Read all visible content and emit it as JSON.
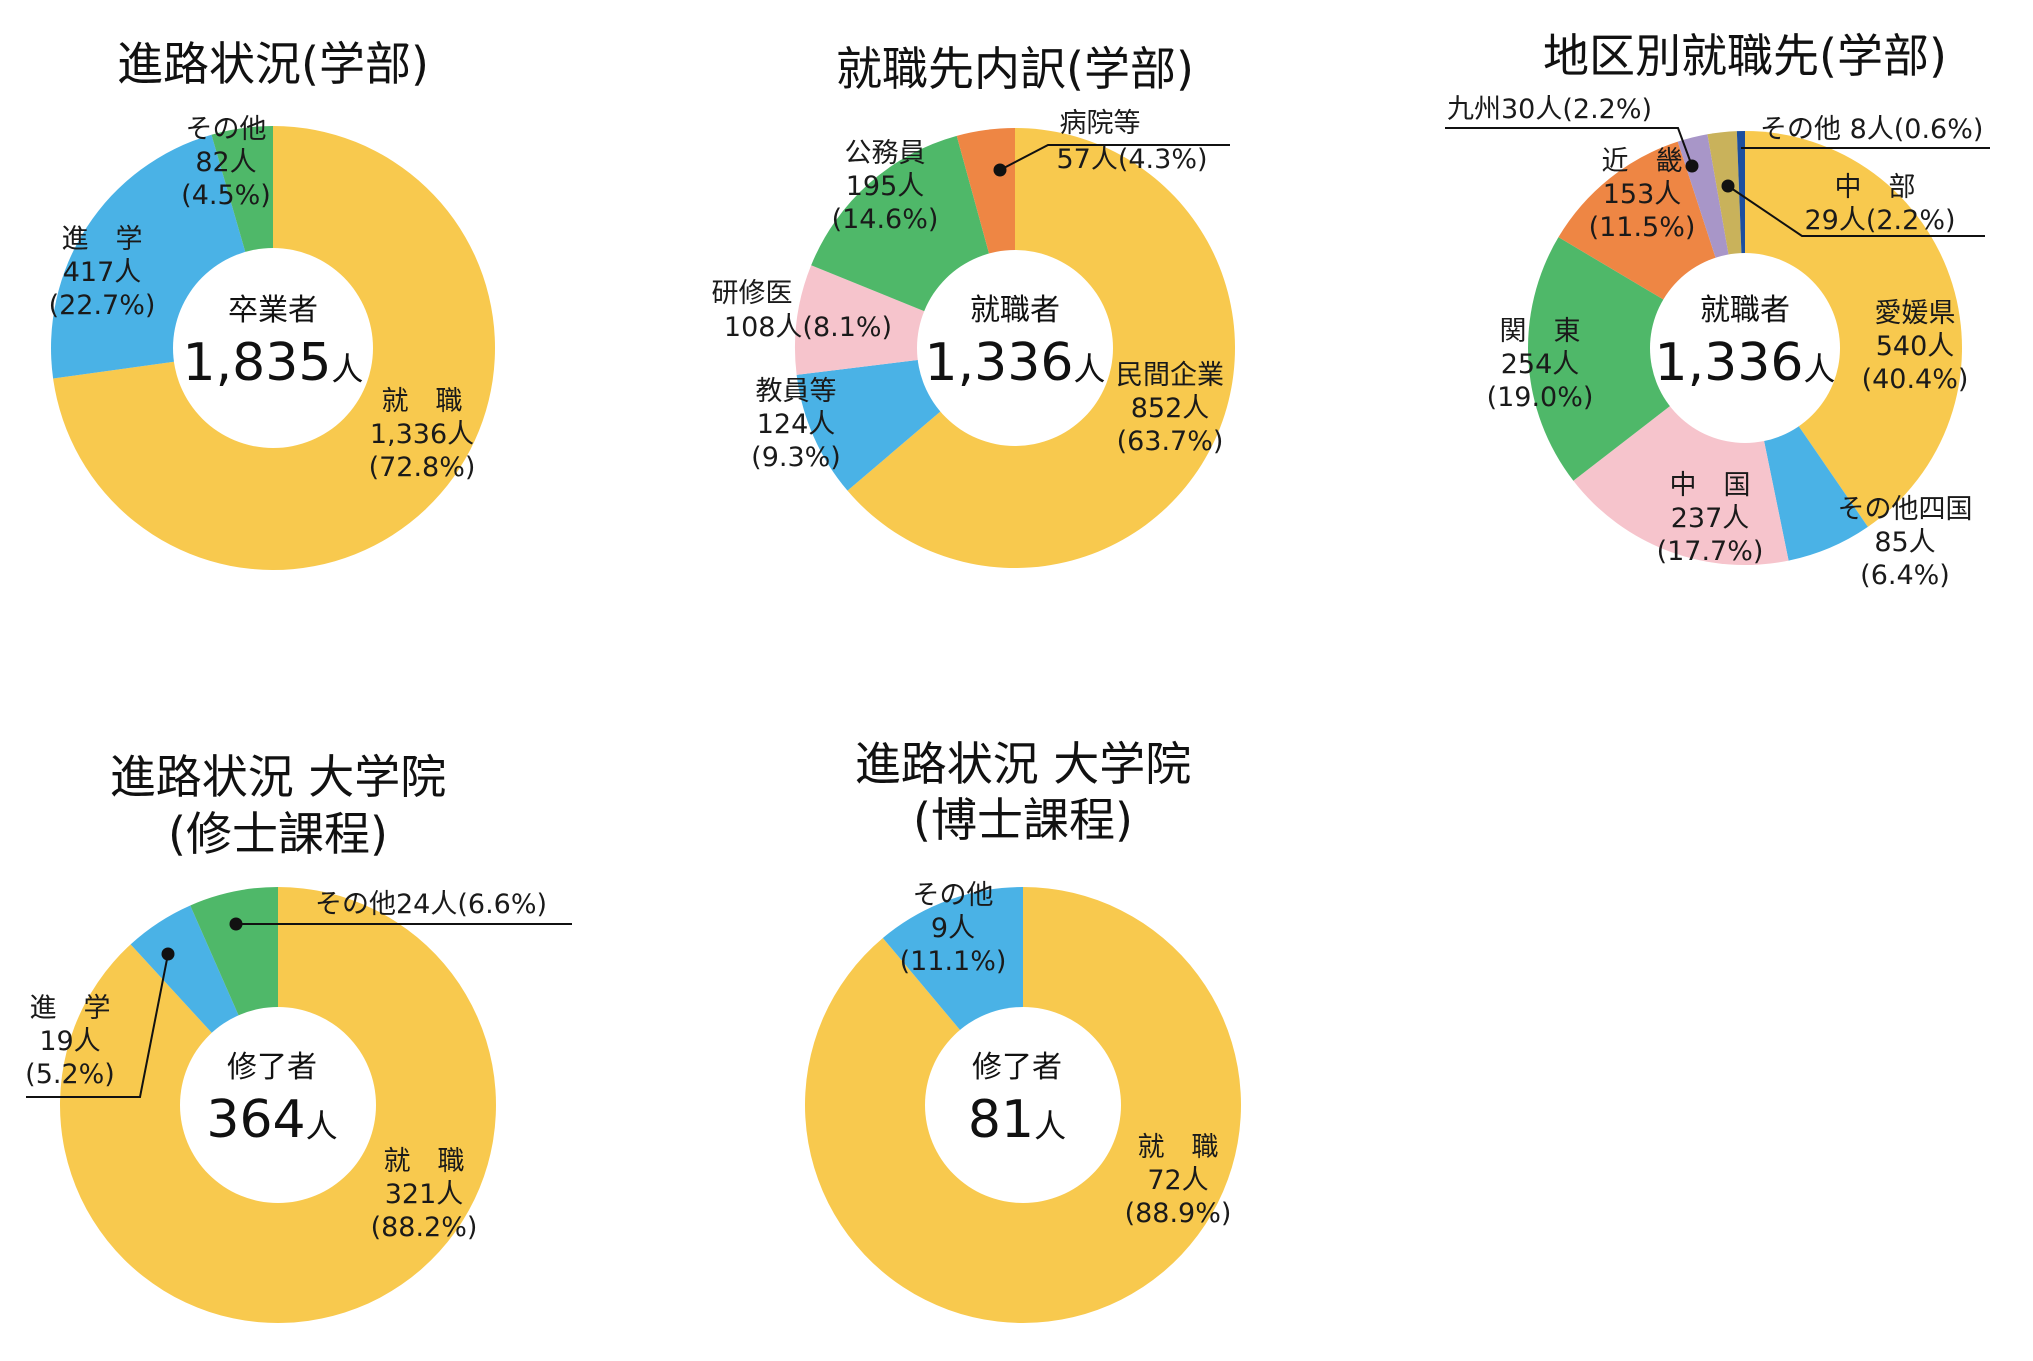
{
  "colors": {
    "yellow": "#f8c94e",
    "blue": "#4ab2e6",
    "green": "#4fb869",
    "orange": "#ee8644",
    "pink": "#f6c4cc",
    "purple": "#a896c8",
    "khaki": "#c9b25b",
    "navy": "#1d4f9e"
  },
  "chart_data": [
    {
      "type": "pie",
      "title": "進路状況(学部)",
      "center": {
        "label": "卒業者",
        "value": "1,835",
        "unit": "人"
      },
      "slices": [
        {
          "name": "就　職",
          "value": 1336,
          "count": "1,336人",
          "pct": "(72.8%)",
          "color": "yellow"
        },
        {
          "name": "進　学",
          "value": 417,
          "count": "417人",
          "pct": "(22.7%)",
          "color": "blue"
        },
        {
          "name": "その他",
          "value": 82,
          "count": "82人",
          "pct": "(4.5%)",
          "color": "green"
        }
      ]
    },
    {
      "type": "pie",
      "title": "就職先内訳(学部)",
      "center": {
        "label": "就職者",
        "value": "1,336",
        "unit": "人"
      },
      "slices": [
        {
          "name": "民間企業",
          "value": 852,
          "count": "852人",
          "pct": "(63.7%)",
          "color": "yellow"
        },
        {
          "name": "教員等",
          "value": 124,
          "count": "124人",
          "pct": "(9.3%)",
          "color": "blue"
        },
        {
          "name": "研修医",
          "value": 108,
          "count": "108人(8.1%)",
          "pct": "",
          "color": "pink"
        },
        {
          "name": "公務員",
          "value": 195,
          "count": "195人",
          "pct": "(14.6%)",
          "color": "green"
        },
        {
          "name": "病院等",
          "value": 57,
          "count": "57人(4.3%)",
          "pct": "",
          "color": "orange"
        }
      ]
    },
    {
      "type": "pie",
      "title": "地区別就職先(学部)",
      "center": {
        "label": "就職者",
        "value": "1,336",
        "unit": "人"
      },
      "slices": [
        {
          "name": "愛媛県",
          "value": 540,
          "count": "540人",
          "pct": "(40.4%)",
          "color": "yellow"
        },
        {
          "name": "その他四国",
          "value": 85,
          "count": "85人",
          "pct": "(6.4%)",
          "color": "blue"
        },
        {
          "name": "中　国",
          "value": 237,
          "count": "237人",
          "pct": "(17.7%)",
          "color": "pink"
        },
        {
          "name": "関　東",
          "value": 254,
          "count": "254人",
          "pct": "(19.0%)",
          "color": "green"
        },
        {
          "name": "近　畿",
          "value": 153,
          "count": "153人",
          "pct": "(11.5%)",
          "color": "orange"
        },
        {
          "name": "九州30人(2.2%)",
          "value": 30,
          "count": "",
          "pct": "",
          "color": "purple"
        },
        {
          "name": "中　部",
          "value": 29,
          "count": "29人(2.2%)",
          "pct": "",
          "color": "khaki"
        },
        {
          "name": "その他 8人(0.6%)",
          "value": 8,
          "count": "",
          "pct": "",
          "color": "navy"
        }
      ]
    },
    {
      "type": "pie",
      "title": "進路状況 大学院",
      "subtitle": "(修士課程)",
      "center": {
        "label": "修了者",
        "value": "364",
        "unit": "人"
      },
      "slices": [
        {
          "name": "就　職",
          "value": 321,
          "count": "321人",
          "pct": "(88.2%)",
          "color": "yellow"
        },
        {
          "name": "進　学",
          "value": 19,
          "count": "19人",
          "pct": "(5.2%)",
          "color": "blue"
        },
        {
          "name": "その他24人(6.6%)",
          "value": 24,
          "count": "",
          "pct": "",
          "color": "green"
        }
      ]
    },
    {
      "type": "pie",
      "title": "進路状況 大学院",
      "subtitle": "(博士課程)",
      "center": {
        "label": "修了者",
        "value": "81",
        "unit": "人"
      },
      "slices": [
        {
          "name": "就　職",
          "value": 72,
          "count": "72人",
          "pct": "(88.9%)",
          "color": "yellow"
        },
        {
          "name": "その他",
          "value": 9,
          "count": "9人",
          "pct": "(11.1%)",
          "color": "blue"
        }
      ]
    }
  ]
}
